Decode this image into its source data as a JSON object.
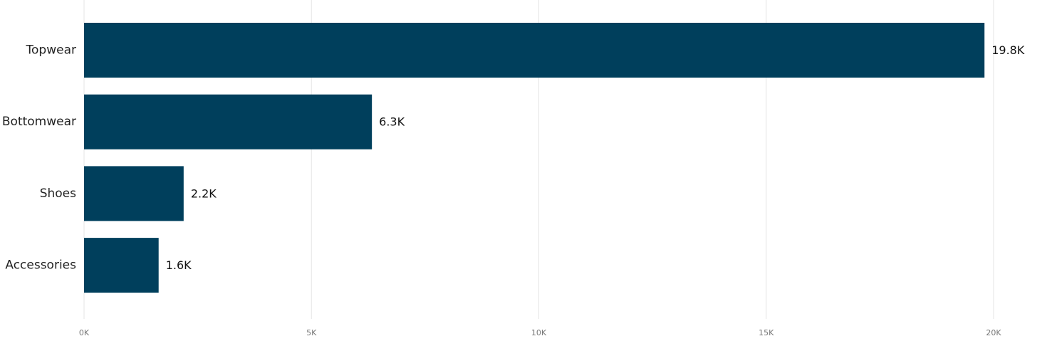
{
  "chart_data": {
    "type": "bar",
    "orientation": "horizontal",
    "categories": [
      "Topwear",
      "Bottomwear",
      "Shoes",
      "Accessories"
    ],
    "values": [
      19800,
      6330,
      2190,
      1640
    ],
    "data_labels": [
      "19.8K",
      "6.3K",
      "2.2K",
      "1.6K"
    ],
    "x_ticks": [
      {
        "value": 0,
        "label": "0K"
      },
      {
        "value": 5000,
        "label": "5K"
      },
      {
        "value": 10000,
        "label": "10K"
      },
      {
        "value": 15000,
        "label": "15K"
      },
      {
        "value": 20000,
        "label": "20K"
      }
    ],
    "xlim": [
      0,
      20000
    ],
    "grid": true,
    "legend": "none",
    "bar_color": "#003f5c"
  }
}
